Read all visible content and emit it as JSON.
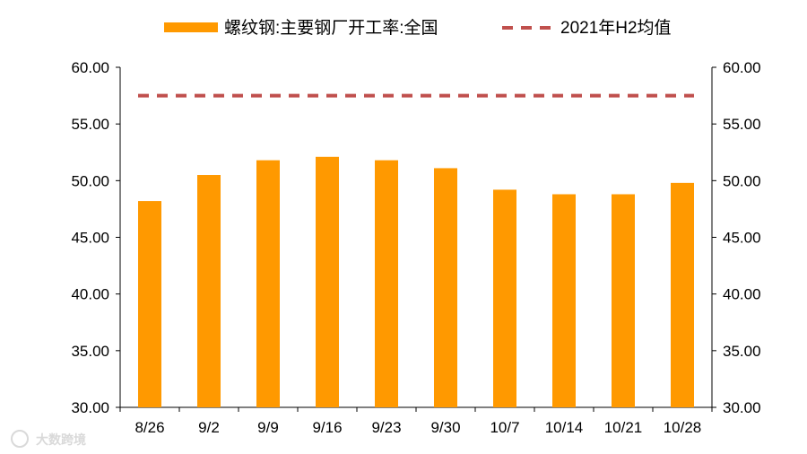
{
  "chart_data": {
    "type": "bar",
    "categories": [
      "8/26",
      "9/2",
      "9/9",
      "9/16",
      "9/23",
      "9/30",
      "10/7",
      "10/14",
      "10/21",
      "10/28"
    ],
    "series": [
      {
        "name": "螺纹钢:主要钢厂开工率:全国",
        "type": "bar",
        "color": "#ff9900",
        "values": [
          48.2,
          50.5,
          51.8,
          52.1,
          51.8,
          51.1,
          49.2,
          48.8,
          48.8,
          49.8
        ]
      },
      {
        "name": "2021年H2均值",
        "type": "line",
        "style": "dashed",
        "color": "#c0504d",
        "value": 57.5
      }
    ],
    "ylim": [
      30,
      60
    ],
    "yticks": [
      "30.00",
      "35.00",
      "40.00",
      "45.00",
      "50.00",
      "55.00",
      "60.00"
    ],
    "y2lim": [
      30,
      60
    ],
    "y2ticks": [
      "30.00",
      "35.00",
      "40.00",
      "45.00",
      "50.00",
      "55.00",
      "60.00"
    ],
    "grid": false,
    "legend_position": "top"
  },
  "watermark": {
    "text": "大数跨境"
  }
}
